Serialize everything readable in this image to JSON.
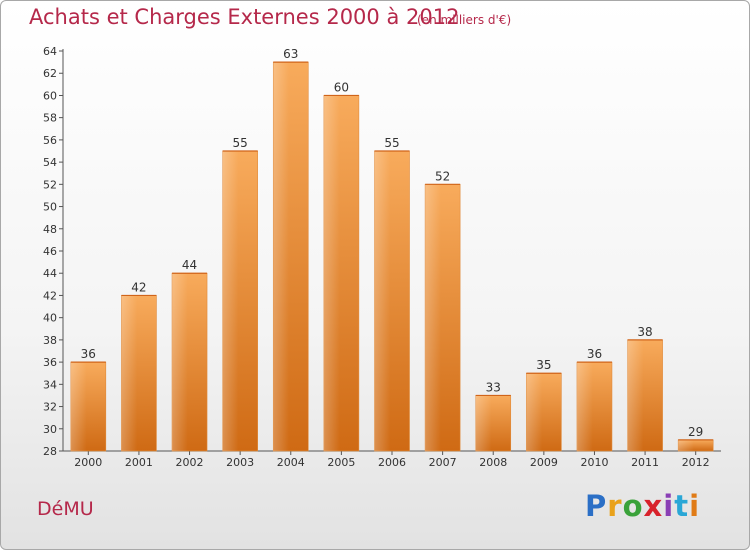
{
  "title": "Achats et Charges Externes 2000 à 2012",
  "subtitle": "(en milliers d'€)",
  "commune": "DéMU",
  "brand": {
    "letters": [
      "P",
      "r",
      "o",
      "x",
      "i",
      "t",
      "i"
    ],
    "colors": [
      "#2b6fc6",
      "#e9a21b",
      "#3aa23a",
      "#d8222b",
      "#8a3fb5",
      "#2aa7d6",
      "#e07b16"
    ]
  },
  "colors": {
    "accent": "#b5284a",
    "bar_light": "#f7a95a",
    "bar_dark": "#cf6a14"
  },
  "chart_data": {
    "type": "bar",
    "categories": [
      "2000",
      "2001",
      "2002",
      "2003",
      "2004",
      "2005",
      "2006",
      "2007",
      "2008",
      "2009",
      "2010",
      "2011",
      "2012"
    ],
    "values": [
      36,
      42,
      44,
      55,
      63,
      60,
      55,
      52,
      33,
      35,
      36,
      38,
      29
    ],
    "ylim": [
      28,
      64
    ],
    "yticks": [
      28,
      30,
      32,
      34,
      36,
      38,
      40,
      42,
      44,
      46,
      48,
      50,
      52,
      54,
      56,
      58,
      60,
      62,
      64
    ],
    "grid": false,
    "data_labels": true
  }
}
